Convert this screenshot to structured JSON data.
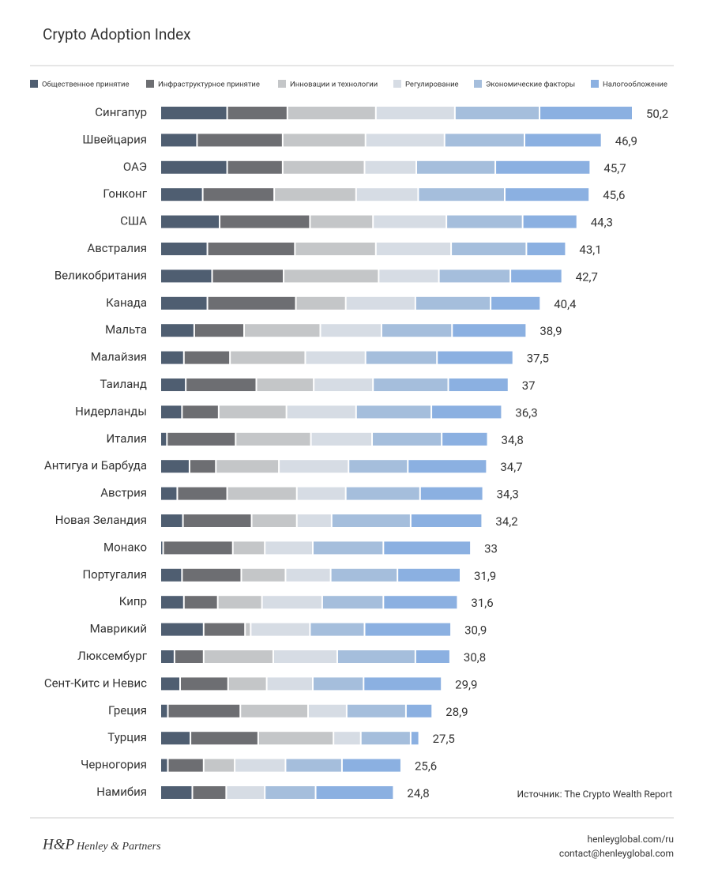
{
  "chart_data": {
    "type": "stacked-bar",
    "orientation": "horizontal",
    "title": "Crypto Adoption Index",
    "categories": [
      "Сингапур",
      "Швейцария",
      "ОАЭ",
      "Гонконг",
      "США",
      "Австралия",
      "Великобритания",
      "Канада",
      "Мальта",
      "Малайзия",
      "Таиланд",
      "Нидерланды",
      "Италия",
      "Антигуа и Барбуда",
      "Австрия",
      "Новая Зеландия",
      "Монако",
      "Португалия",
      "Кипр",
      "Маврикий",
      "Люксембург",
      "Сент-Китс и Невис",
      "Греция",
      "Турция",
      "Черногория",
      "Намибия"
    ],
    "series": [
      {
        "name": "Общественное принятие",
        "color": "#4f5e71",
        "values": [
          7.1,
          3.9,
          7.1,
          4.5,
          6.3,
          5.0,
          5.5,
          5.0,
          3.6,
          2.5,
          2.7,
          2.3,
          0.7,
          3.1,
          1.8,
          2.4,
          0.3,
          2.3,
          2.5,
          4.6,
          1.5,
          2.1,
          0.8,
          3.2,
          0.8,
          3.4
        ]
      },
      {
        "name": "Инфраструктурное принятие",
        "color": "#6d6e72",
        "values": [
          6.4,
          9.1,
          5.9,
          7.6,
          9.6,
          9.3,
          7.6,
          9.4,
          5.3,
          4.9,
          7.5,
          3.9,
          7.3,
          2.8,
          5.3,
          7.3,
          7.4,
          6.3,
          3.6,
          4.4,
          3.1,
          5.1,
          7.7,
          7.2,
          3.8,
          3.6
        ]
      },
      {
        "name": "Инновации и технологии",
        "color": "#c4c6c8",
        "values": [
          9.4,
          8.8,
          8.7,
          8.7,
          6.7,
          8.6,
          10.1,
          5.3,
          8.1,
          8.0,
          6.1,
          7.2,
          8.0,
          6.7,
          7.4,
          4.8,
          3.4,
          4.7,
          4.7,
          0.6,
          7.4,
          4.1,
          7.2,
          8.0,
          3.3,
          0
        ]
      },
      {
        "name": "Регулирование",
        "color": "#d6dce4",
        "values": [
          8.4,
          8.4,
          5.5,
          6.6,
          7.8,
          8.0,
          6.4,
          7.4,
          6.5,
          6.4,
          6.3,
          7.4,
          6.5,
          7.4,
          5.2,
          3.7,
          5.1,
          4.8,
          6.4,
          6.3,
          6.8,
          4.9,
          4.1,
          2.9,
          5.4,
          4.1
        ]
      },
      {
        "name": "Экономические факторы",
        "color": "#a5bedc",
        "values": [
          9.0,
          8.5,
          8.4,
          9.2,
          8.1,
          8.0,
          7.6,
          8.0,
          7.5,
          7.6,
          8.0,
          8.0,
          7.4,
          6.3,
          7.9,
          8.4,
          7.5,
          7.1,
          6.5,
          5.8,
          8.3,
          5.4,
          6.3,
          5.3,
          6.0,
          5.4
        ]
      },
      {
        "name": "Налогообложение",
        "color": "#8bb0e1",
        "values": [
          9.9,
          8.2,
          10.1,
          9.0,
          5.8,
          4.2,
          5.5,
          5.3,
          7.9,
          8.1,
          6.4,
          7.5,
          4.9,
          8.4,
          6.7,
          7.6,
          9.3,
          6.7,
          7.9,
          9.2,
          3.7,
          8.3,
          2.8,
          0.9,
          6.3,
          8.3
        ]
      }
    ],
    "totals": [
      50.2,
      46.9,
      45.7,
      45.6,
      44.3,
      43.1,
      42.7,
      40.4,
      38.9,
      37.5,
      37,
      36.3,
      34.8,
      34.7,
      34.3,
      34.2,
      33,
      31.9,
      31.6,
      30.9,
      30.8,
      29.9,
      28.9,
      27.5,
      25.6,
      24.8
    ],
    "total_labels": [
      "50,2",
      "46,9",
      "45,7",
      "45,6",
      "44,3",
      "43,1",
      "42,7",
      "40,4",
      "38,9",
      "37,5",
      "37",
      "36,3",
      "34,8",
      "34,7",
      "34,3",
      "34,2",
      "33",
      "31,9",
      "31,6",
      "30,9",
      "30,8",
      "29,9",
      "28,9",
      "27,5",
      "25,6",
      "24,8"
    ],
    "source": "Источник: The Crypto Wealth Report"
  },
  "footer": {
    "logo_mark": "H&P",
    "logo_name": "Henley & Partners",
    "links": [
      "henleyglobal.com/ru",
      "contact@henleyglobal.com"
    ]
  }
}
